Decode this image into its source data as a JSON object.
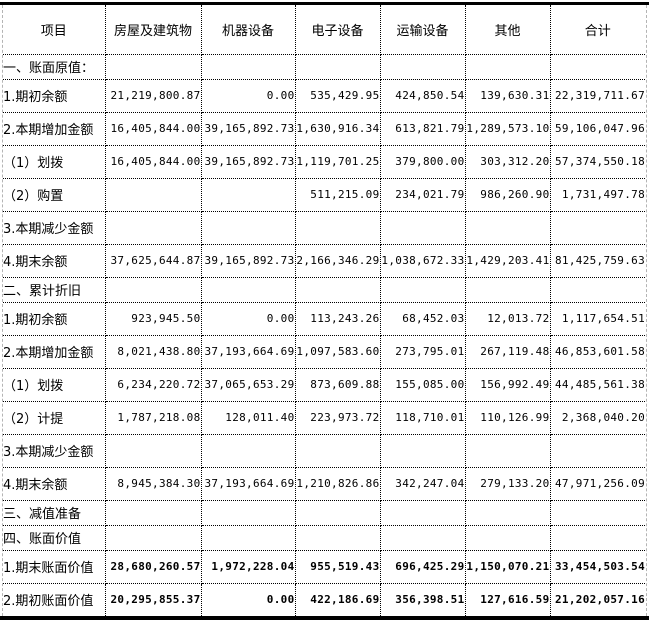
{
  "table": {
    "columns": [
      "项目",
      "房屋及建筑物",
      "机器设备",
      "电子设备",
      "运输设备",
      "其他",
      "合计"
    ],
    "rows": [
      {
        "label": "一、账面原值：",
        "type": "section",
        "values": [
          "",
          "",
          "",
          "",
          "",
          ""
        ]
      },
      {
        "label": "1.期初余额",
        "type": "data",
        "values": [
          "21,219,800.87",
          "0.00",
          "535,429.95",
          "424,850.54",
          "139,630.31",
          "22,319,711.67"
        ]
      },
      {
        "label": "2.本期增加金额",
        "type": "data",
        "values": [
          "16,405,844.00",
          "39,165,892.73",
          "1,630,916.34",
          "613,821.79",
          "1,289,573.10",
          "59,106,047.96"
        ]
      },
      {
        "label": "（1）划拨",
        "type": "data",
        "values": [
          "16,405,844.00",
          "39,165,892.73",
          "1,119,701.25",
          "379,800.00",
          "303,312.20",
          "57,374,550.18"
        ]
      },
      {
        "label": "（2）购置",
        "type": "data",
        "values": [
          "",
          "",
          "511,215.09",
          "234,021.79",
          "986,260.90",
          "1,731,497.78"
        ]
      },
      {
        "label": "3.本期减少金额",
        "type": "data",
        "values": [
          "",
          "",
          "",
          "",
          "",
          ""
        ]
      },
      {
        "label": "4.期末余额",
        "type": "data",
        "values": [
          "37,625,644.87",
          "39,165,892.73",
          "2,166,346.29",
          "1,038,672.33",
          "1,429,203.41",
          "81,425,759.63"
        ]
      },
      {
        "label": "二、累计折旧",
        "type": "section",
        "values": [
          "",
          "",
          "",
          "",
          "",
          ""
        ]
      },
      {
        "label": "1.期初余额",
        "type": "data",
        "values": [
          "923,945.50",
          "0.00",
          "113,243.26",
          "68,452.03",
          "12,013.72",
          "1,117,654.51"
        ]
      },
      {
        "label": "2.本期增加金额",
        "type": "data",
        "values": [
          "8,021,438.80",
          "37,193,664.69",
          "1,097,583.60",
          "273,795.01",
          "267,119.48",
          "46,853,601.58"
        ]
      },
      {
        "label": "（1）划拨",
        "type": "data",
        "values": [
          "6,234,220.72",
          "37,065,653.29",
          "873,609.88",
          "155,085.00",
          "156,992.49",
          "44,485,561.38"
        ]
      },
      {
        "label": "（2）计提",
        "type": "data",
        "values": [
          "1,787,218.08",
          "128,011.40",
          "223,973.72",
          "118,710.01",
          "110,126.99",
          "2,368,040.20"
        ]
      },
      {
        "label": "3.本期减少金额",
        "type": "data",
        "values": [
          "",
          "",
          "",
          "",
          "",
          ""
        ]
      },
      {
        "label": "4.期末余额",
        "type": "data",
        "values": [
          "8,945,384.30",
          "37,193,664.69",
          "1,210,826.86",
          "342,247.04",
          "279,133.20",
          "47,971,256.09"
        ]
      },
      {
        "label": "三、减值准备",
        "type": "section",
        "values": [
          "",
          "",
          "",
          "",
          "",
          ""
        ]
      },
      {
        "label": "四、账面价值",
        "type": "section",
        "values": [
          "",
          "",
          "",
          "",
          "",
          ""
        ]
      },
      {
        "label": "1.期末账面价值",
        "type": "data",
        "bold_values": true,
        "values": [
          "28,680,260.57",
          "1,972,228.04",
          "955,519.43",
          "696,425.29",
          "1,150,070.21",
          "33,454,503.54"
        ]
      },
      {
        "label": "2.期初账面价值",
        "type": "data",
        "bold_values": true,
        "values": [
          "20,295,855.37",
          "0.00",
          "422,186.69",
          "356,398.51",
          "127,616.59",
          "21,202,057.16"
        ]
      }
    ]
  },
  "colors": {
    "grid_dotted": "#000000",
    "outer_rule": "#000000",
    "page_edge_dashed": "#b4b4b4",
    "background": "#ffffff",
    "text": "#000000"
  }
}
